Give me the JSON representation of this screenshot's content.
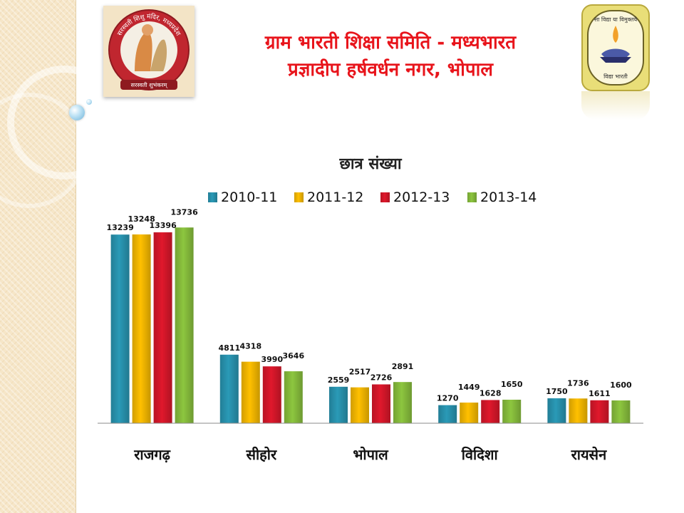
{
  "header": {
    "line1": "ग्राम भारती शिक्षा समिति - मध्यभारत",
    "line2": "प्रज्ञादीप हर्षवर्धन नगर, भोपाल"
  },
  "logos": {
    "left": {
      "text_top": "सरस्वती शिशु मंदिर, मध्यप्रदेश",
      "text_bottom": "सरस्वती शुभंकरम्"
    },
    "right": {
      "text_top": "सा विद्या या विमुक्तये",
      "text_bottom": "विद्या भारती"
    }
  },
  "colors": {
    "title": "#e8141b",
    "series": [
      "#2a9ab7",
      "#ffc000",
      "#e0182c",
      "#8dc63f"
    ]
  },
  "chart_data": {
    "type": "bar",
    "title": "छात्र संख्या",
    "legend_position": "top",
    "categories": [
      "राजगढ़",
      "सीहोर",
      "भोपाल",
      "विदिशा",
      "रायसेन"
    ],
    "series": [
      {
        "name": "2010-11",
        "values": [
          13239,
          4811,
          2559,
          1270,
          1750
        ]
      },
      {
        "name": "2011-12",
        "values": [
          13248,
          4318,
          2517,
          1449,
          1736
        ]
      },
      {
        "name": "2012-13",
        "values": [
          13396,
          3990,
          2726,
          1628,
          1611
        ]
      },
      {
        "name": "2013-14",
        "values": [
          13736,
          3646,
          2891,
          1650,
          1600
        ]
      }
    ],
    "ylim": [
      0,
      14000
    ],
    "grid": false,
    "data_labels": true
  }
}
